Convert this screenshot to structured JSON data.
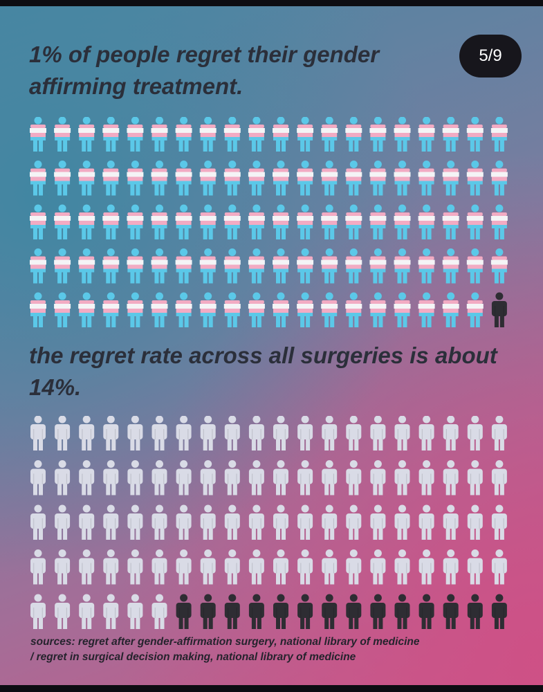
{
  "badge": "5/9",
  "chart_data": [
    {
      "type": "pictogram",
      "title": "1% of people regret their gender affirming treatment.",
      "total": 100,
      "highlighted": 1,
      "percent": 1,
      "base_style": "trans-flag",
      "highlight_color": "#2e2d33",
      "colors": {
        "blue": "#5bc8e8",
        "pink": "#f2abc3",
        "white": "#f4f4f6"
      }
    },
    {
      "type": "pictogram",
      "title": "the regret rate across all surgeries is about 14%.",
      "total": 100,
      "highlighted": 14,
      "percent": 14,
      "base_color": "#d9dbe6",
      "highlight_color": "#2e2d33"
    }
  ],
  "sources": {
    "line1": "sources: regret after gender-affirmation surgery, national library of medicine",
    "line2": "/ regret in surgical decision making, national library of medicine"
  }
}
